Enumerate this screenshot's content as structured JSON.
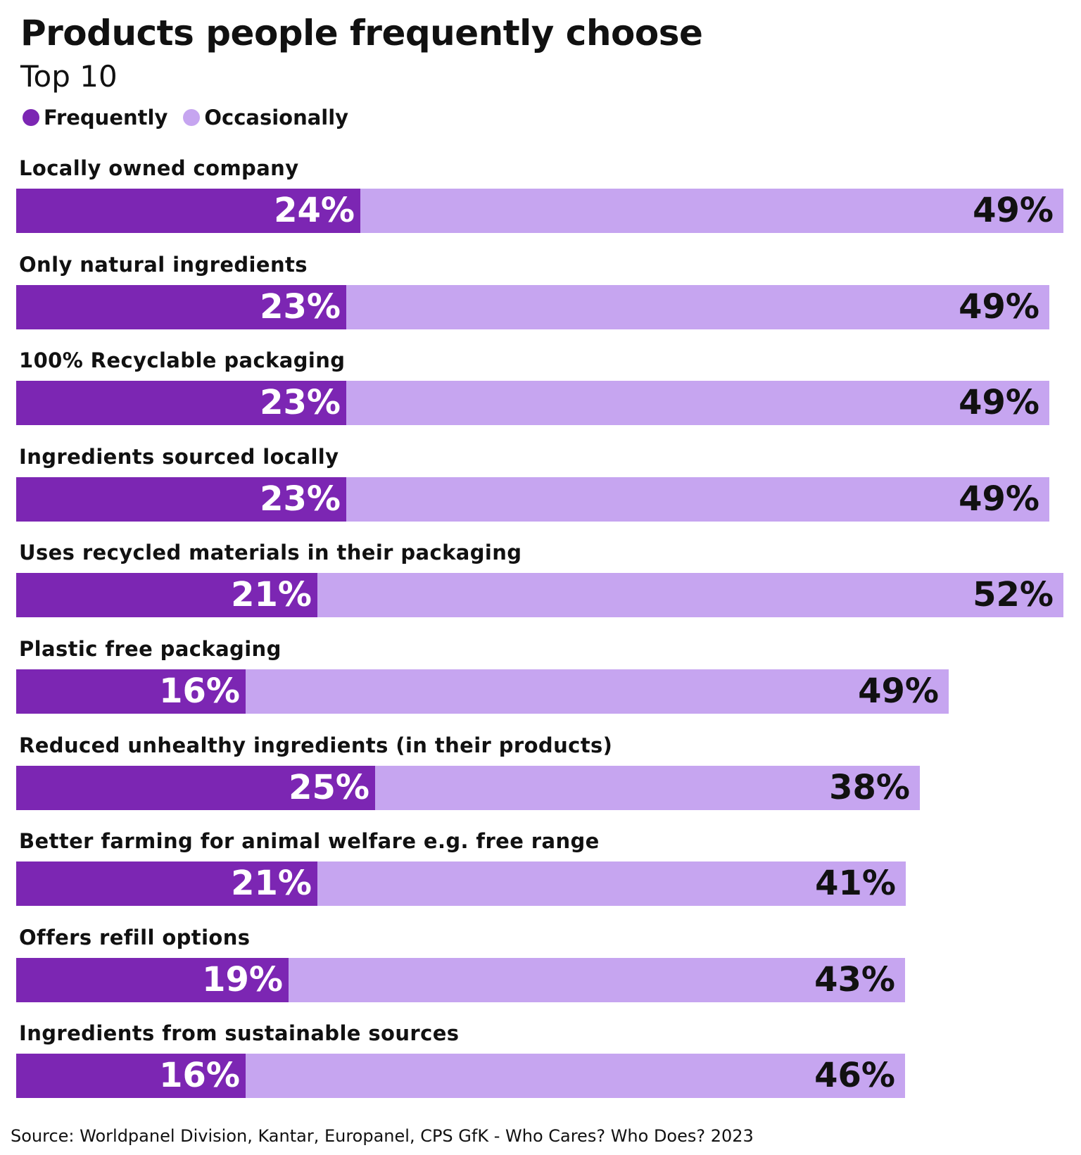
{
  "title": "Products people frequently choose",
  "subtitle": "Top 10",
  "source": "Source: Worldpanel Division, Kantar, Europanel, CPS GfK - Who Cares? Who Does? 2023",
  "colors": {
    "frequently": "#7c26b3",
    "occasionally": "#c6a5f0",
    "frequently_label": "#ffffff",
    "occasionally_label": "#111111"
  },
  "legend": [
    {
      "key": "frequently",
      "label": "Frequently"
    },
    {
      "key": "occasionally",
      "label": "Occasionally"
    }
  ],
  "chart_data": {
    "type": "bar",
    "orientation": "horizontal",
    "stacked": true,
    "title": "Products people frequently choose",
    "subtitle": "Top 10",
    "unit": "%",
    "legend_position": "top-left",
    "categories": [
      "Locally owned company",
      "Only natural ingredients",
      "100% Recyclable packaging",
      "Ingredients sourced locally",
      "Uses recycled materials in their packaging",
      "Plastic free packaging",
      "Reduced unhealthy ingredients (in their products)",
      "Better farming for animal welfare e.g. free range",
      "Offers refill options",
      "Ingredients from sustainable sources"
    ],
    "series": [
      {
        "name": "Frequently",
        "values": [
          24,
          23,
          23,
          23,
          21,
          16,
          25,
          21,
          19,
          16
        ]
      },
      {
        "name": "Occasionally",
        "values": [
          49,
          49,
          49,
          49,
          52,
          49,
          38,
          41,
          43,
          46
        ]
      }
    ]
  }
}
